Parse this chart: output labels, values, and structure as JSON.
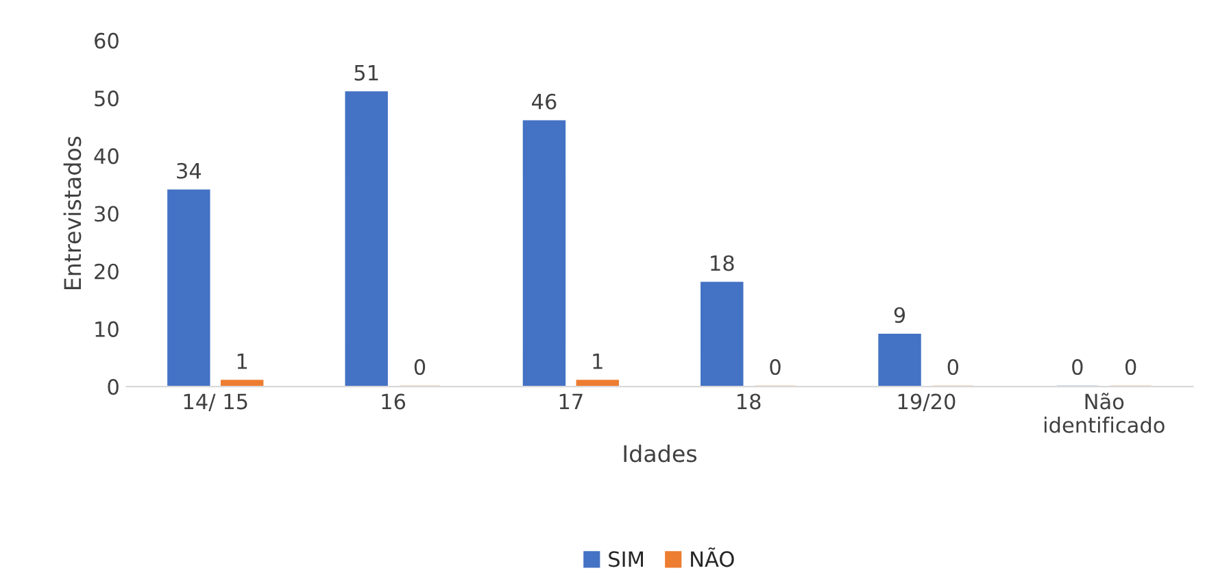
{
  "chart_data": {
    "type": "bar",
    "xlabel": "Idades",
    "ylabel": "Entrevistados",
    "categories": [
      "14/ 15",
      "16",
      "17",
      "18",
      "19/20",
      "Não\nidentificado"
    ],
    "series": [
      {
        "name": "SIM",
        "color": "#4472c4",
        "values": [
          34,
          51,
          46,
          18,
          9,
          0
        ]
      },
      {
        "name": "NÃO",
        "color": "#ed7d31",
        "values": [
          1,
          0,
          1,
          0,
          0,
          0
        ]
      }
    ],
    "ylim": [
      0,
      60
    ],
    "yticks": [
      0,
      10,
      20,
      30,
      40,
      50,
      60
    ],
    "grid": false,
    "legend": "bottom",
    "data_labels": true
  }
}
